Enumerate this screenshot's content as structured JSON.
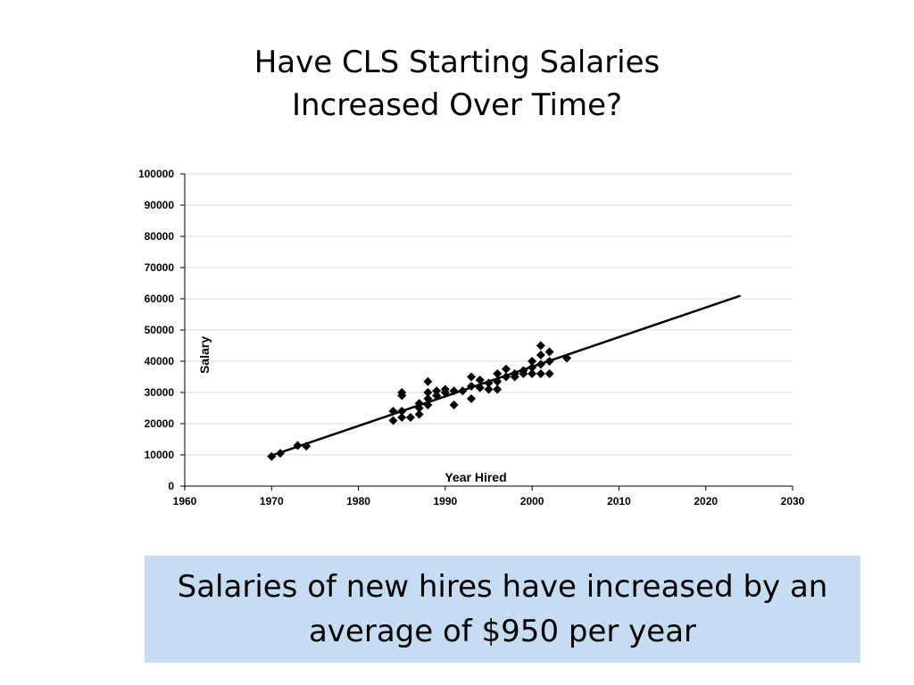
{
  "slide": {
    "title_line1": "Have CLS Starting Salaries",
    "title_line2": "Increased Over Time?",
    "callout_line1": "Salaries of new hires have increased by an",
    "callout_line2": "average of $950 per year",
    "callout_color": "#c6dcf2"
  },
  "chart_data": {
    "type": "scatter",
    "xlabel": "Year Hired",
    "ylabel": "Salary",
    "xlim": [
      1960,
      2030
    ],
    "ylim": [
      0,
      100000
    ],
    "xticks": [
      1960,
      1970,
      1980,
      1990,
      2000,
      2010,
      2020,
      2030
    ],
    "yticks": [
      0,
      10000,
      20000,
      30000,
      40000,
      50000,
      60000,
      70000,
      80000,
      90000,
      100000
    ],
    "grid": true,
    "legend": "none",
    "marker": "diamond",
    "points": [
      [
        1970,
        9500
      ],
      [
        1971,
        10500
      ],
      [
        1973,
        13000
      ],
      [
        1974,
        12800
      ],
      [
        1984,
        21000
      ],
      [
        1984,
        24000
      ],
      [
        1985,
        22000
      ],
      [
        1985,
        24000
      ],
      [
        1985,
        29000
      ],
      [
        1985,
        30000
      ],
      [
        1986,
        22000
      ],
      [
        1987,
        23000
      ],
      [
        1987,
        25000
      ],
      [
        1987,
        26500
      ],
      [
        1988,
        26000
      ],
      [
        1988,
        28000
      ],
      [
        1988,
        30000
      ],
      [
        1988,
        33500
      ],
      [
        1989,
        29000
      ],
      [
        1989,
        30500
      ],
      [
        1990,
        30000
      ],
      [
        1990,
        31000
      ],
      [
        1991,
        26000
      ],
      [
        1991,
        30500
      ],
      [
        1992,
        30500
      ],
      [
        1993,
        28000
      ],
      [
        1993,
        32000
      ],
      [
        1993,
        35000
      ],
      [
        1994,
        31500
      ],
      [
        1994,
        34000
      ],
      [
        1995,
        31000
      ],
      [
        1995,
        33000
      ],
      [
        1996,
        31000
      ],
      [
        1996,
        33500
      ],
      [
        1996,
        36000
      ],
      [
        1997,
        35000
      ],
      [
        1997,
        37500
      ],
      [
        1998,
        35000
      ],
      [
        1998,
        36000
      ],
      [
        1999,
        36000
      ],
      [
        1999,
        37000
      ],
      [
        2000,
        36000
      ],
      [
        2000,
        38000
      ],
      [
        2000,
        40000
      ],
      [
        2001,
        36000
      ],
      [
        2001,
        39000
      ],
      [
        2001,
        42000
      ],
      [
        2001,
        45000
      ],
      [
        2002,
        36000
      ],
      [
        2002,
        40000
      ],
      [
        2002,
        43000
      ],
      [
        2004,
        41000
      ]
    ],
    "trendline": {
      "x": [
        1970,
        2024
      ],
      "y": [
        9800,
        61000
      ]
    },
    "series_color": "#000000"
  }
}
